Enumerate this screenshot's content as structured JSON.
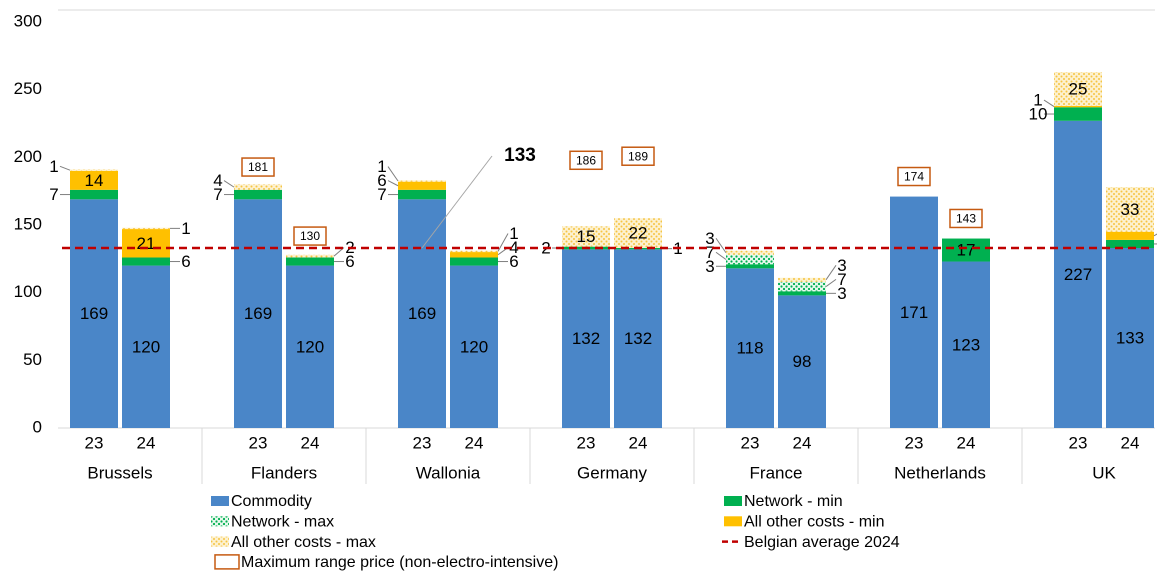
{
  "chart_data": {
    "type": "stacked_bar",
    "categories": [
      "23",
      "24",
      "23",
      "24",
      "23",
      "24",
      "23",
      "24",
      "23",
      "24",
      "23",
      "24",
      "23",
      "24"
    ],
    "groups": [
      "Brussels",
      "Flanders",
      "Wallonia",
      "Germany",
      "France",
      "Netherlands",
      "UK"
    ],
    "series": [
      {
        "name": "Commodity",
        "color": "#4a86c8",
        "values": [
          169,
          120,
          169,
          120,
          169,
          120,
          132,
          132,
          118,
          98,
          171,
          123,
          227,
          133
        ]
      },
      {
        "name": "Network - min",
        "color": "#00b050",
        "values": [
          7,
          6,
          7,
          6,
          7,
          6,
          2,
          1,
          3,
          3,
          null,
          17,
          10,
          6
        ]
      },
      {
        "name": "Network - max",
        "color": "#00b050",
        "pattern": "dots",
        "values": [
          null,
          null,
          null,
          null,
          null,
          null,
          null,
          null,
          7,
          7,
          null,
          null,
          null,
          null
        ]
      },
      {
        "name": "All other costs - min",
        "color": "#ffc000",
        "values": [
          14,
          21,
          null,
          null,
          6,
          4,
          null,
          null,
          null,
          null,
          null,
          null,
          1,
          6
        ]
      },
      {
        "name": "All other costs - max",
        "color": "#f5c542",
        "pattern": "dots",
        "values": [
          1,
          1,
          4,
          2,
          1,
          1,
          15,
          22,
          3,
          3,
          null,
          null,
          25,
          33
        ]
      }
    ],
    "average": {
      "name": "Belgian average 2024",
      "color": "#c00000",
      "value": 133
    },
    "max_range": {
      "name": "Maximum range price (non-electro-intensive)",
      "color": "#c55a11",
      "values": [
        null,
        null,
        181,
        130,
        null,
        null,
        186,
        189,
        null,
        null,
        174,
        143,
        null,
        null
      ]
    },
    "ylim": [
      0,
      300
    ],
    "yticks": [
      0,
      50,
      100,
      150,
      200,
      250,
      300
    ]
  }
}
